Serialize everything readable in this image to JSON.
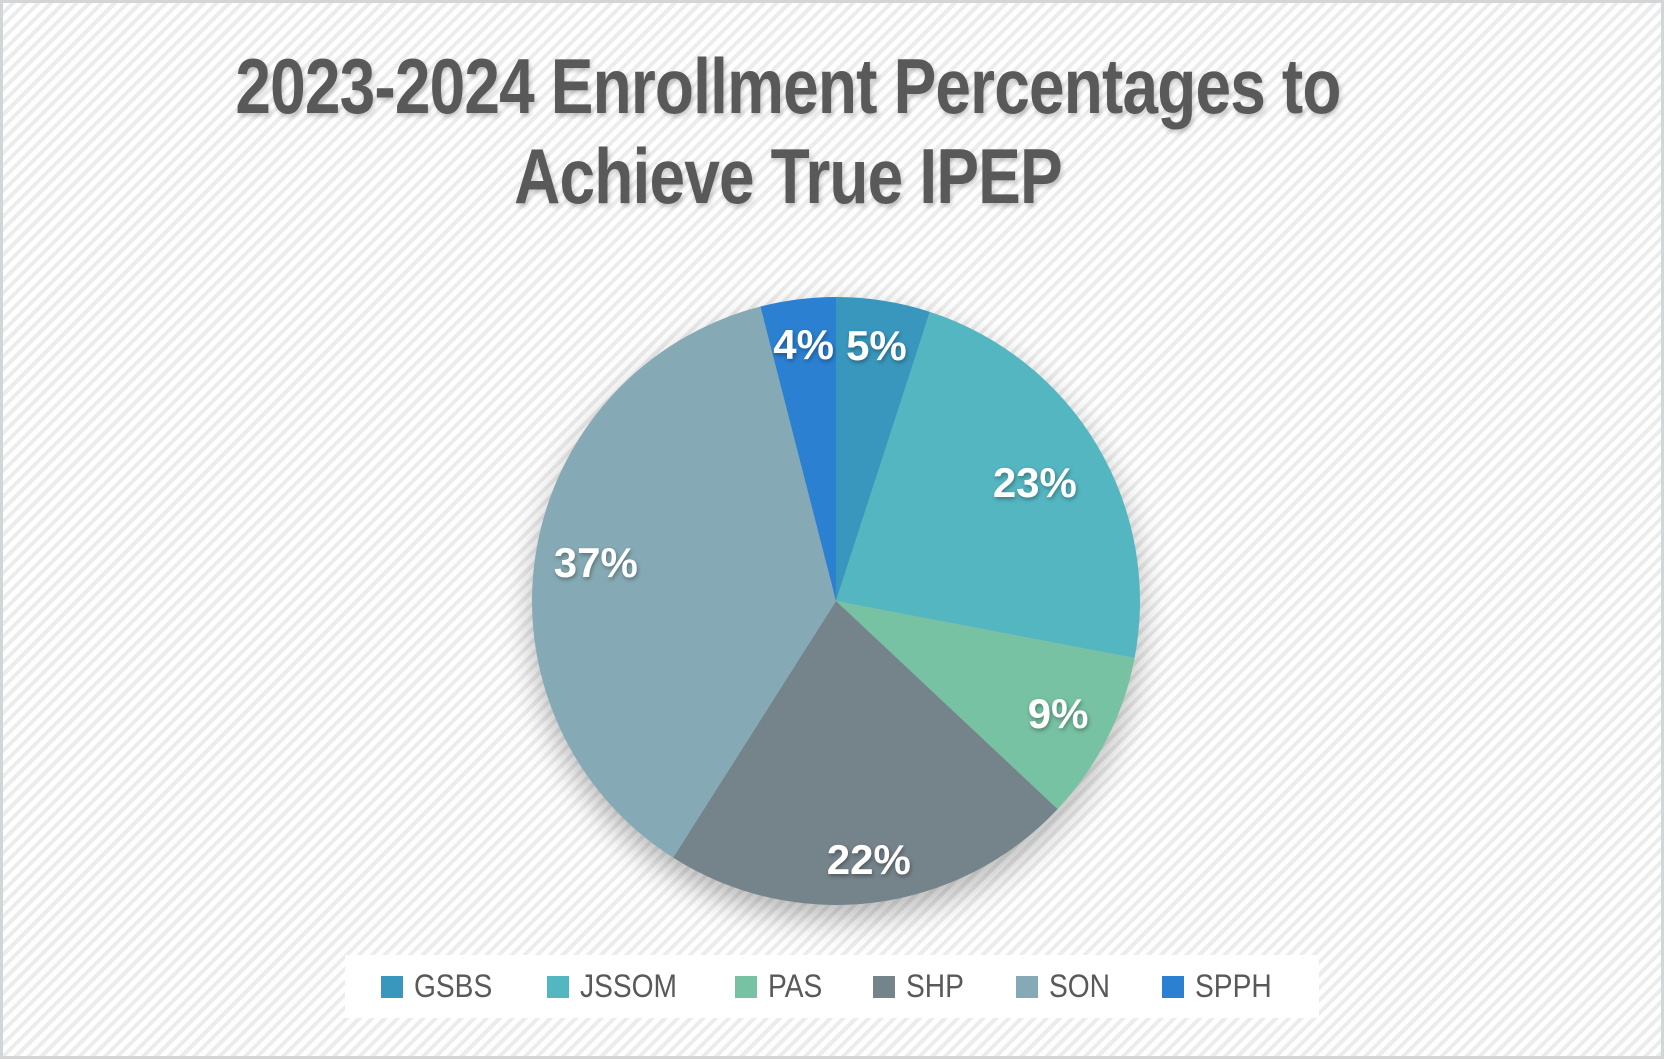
{
  "title": {
    "line1": "2023-2024 Enrollment Percentages to",
    "line2": "Achieve True IPEP",
    "color": "#595959"
  },
  "chart_data": {
    "type": "pie",
    "title": "2023-2024 Enrollment Percentages to Achieve True IPEP",
    "categories": [
      "GSBS",
      "JSSOM",
      "PAS",
      "SHP",
      "SON",
      "SPPH"
    ],
    "values": [
      5,
      23,
      9,
      22,
      37,
      4
    ],
    "labels": [
      "5%",
      "23%",
      "9%",
      "22%",
      "37%",
      "4%"
    ],
    "colors": [
      "#3997BE",
      "#54B6C1",
      "#77C2A2",
      "#75848B",
      "#86AAB5",
      "#2B80D2"
    ],
    "unit": "percent",
    "total": 100,
    "start_angle_deg": 0,
    "direction": "clockwise",
    "legend_position": "bottom",
    "data_label_color": "#FFFFFF",
    "legend_text_color": "#595959",
    "legend_background": "#FFFFFF"
  }
}
